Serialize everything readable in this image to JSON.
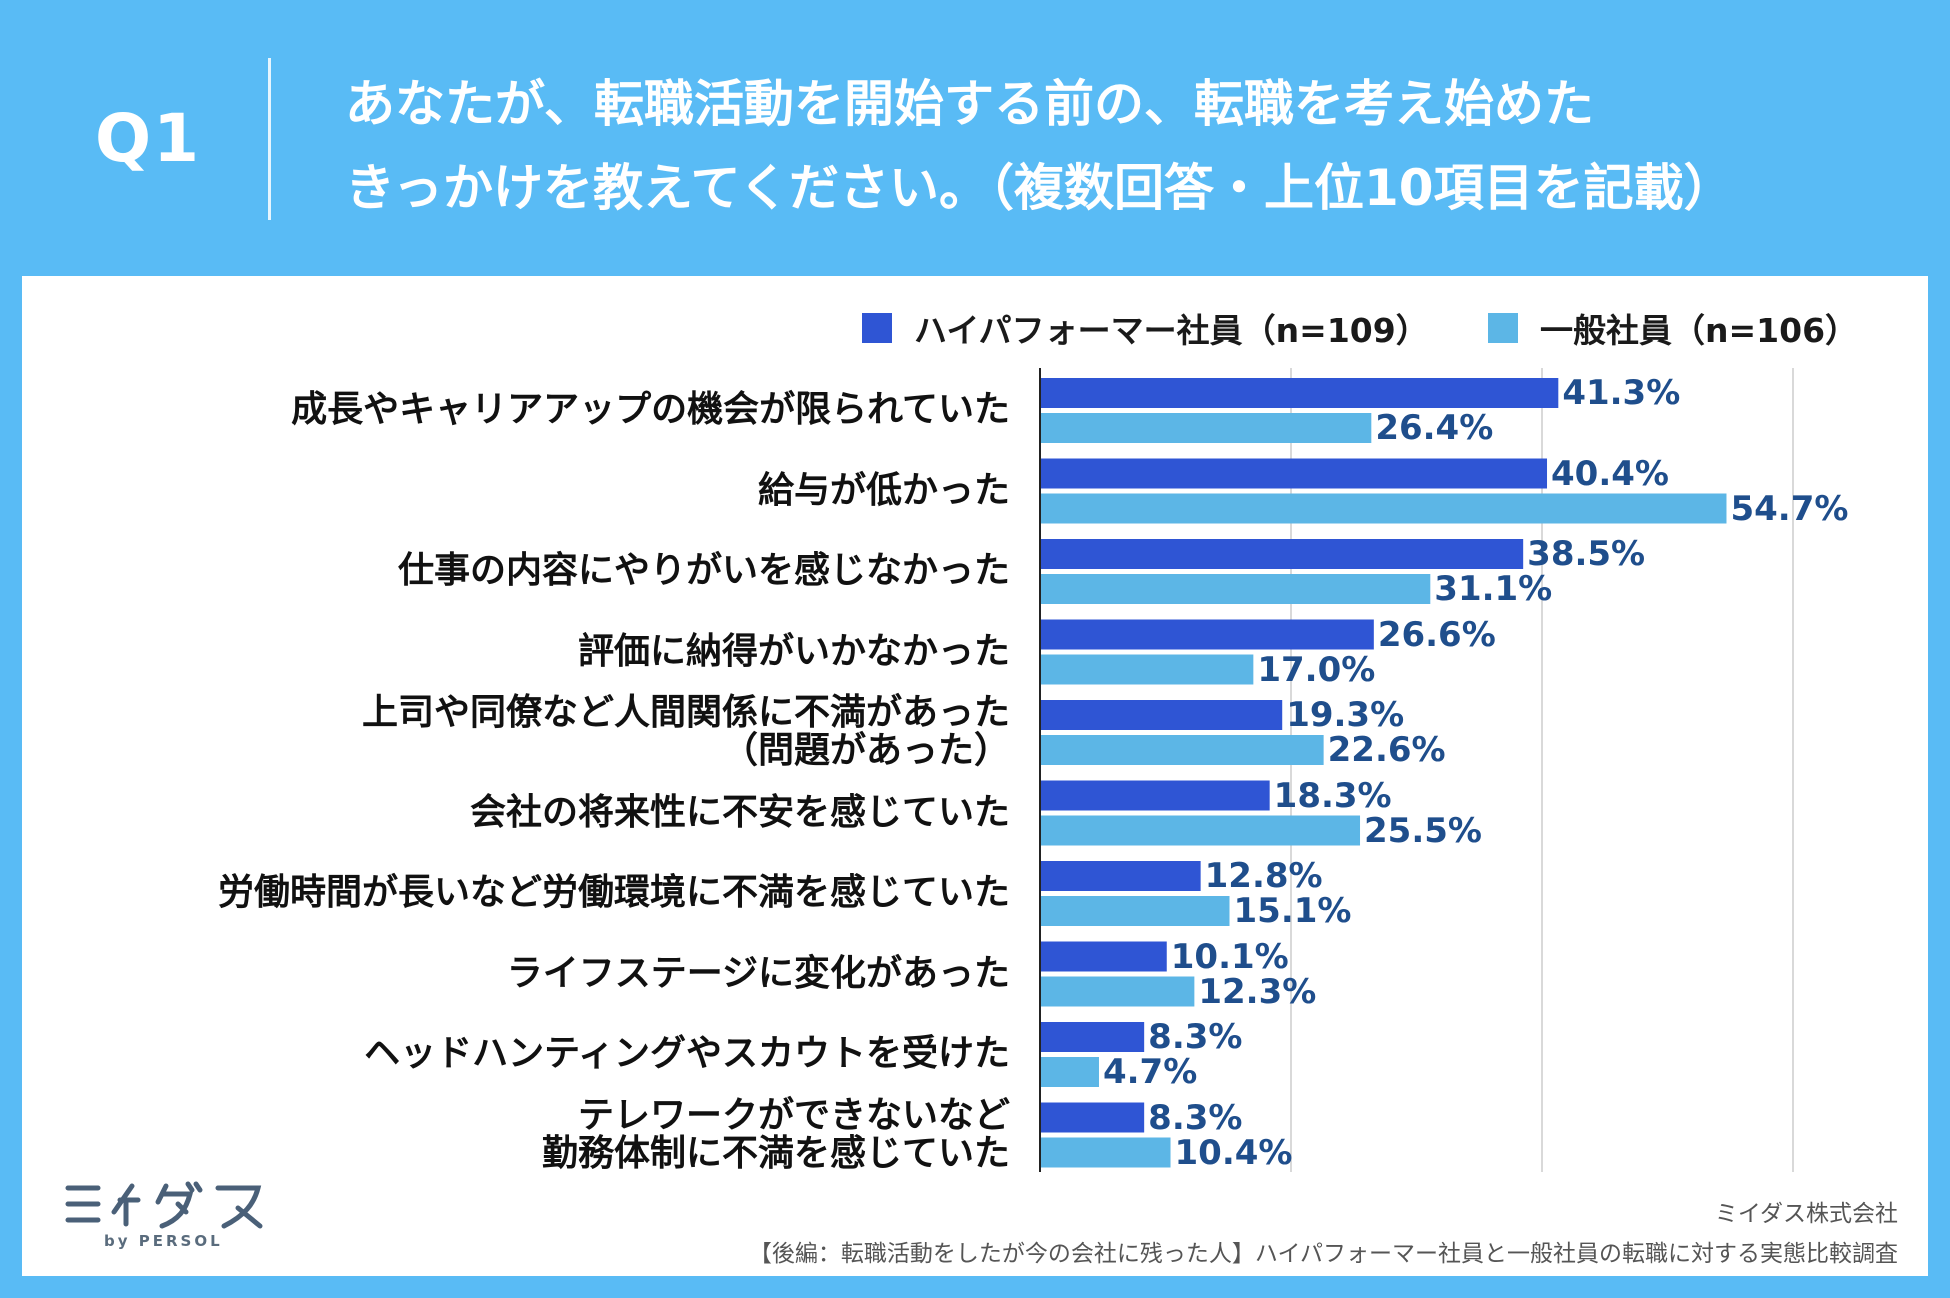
{
  "header": {
    "question_number": "Q1",
    "title_line1": "あなたが、転職活動を開始する前の、転職を考え始めた",
    "title_line2": "きっかけを教えてください。（複数回答・上位10項目を記載）"
  },
  "legend": {
    "high_performer": "ハイパフォーマー社員（n=109）",
    "general": "一般社員（n=106）"
  },
  "colors": {
    "background": "#59bbf5",
    "high_performer_bar": "#2f55d4",
    "general_bar": "#5cb6e6",
    "value_text": "#1f4e8c"
  },
  "chart_data": {
    "type": "bar",
    "orientation": "horizontal",
    "title": "あなたが、転職活動を開始する前の、転職を考え始めたきっかけを教えてください。（複数回答・上位10項目を記載）",
    "categories": [
      [
        "成長やキャリアアップの機会が限られていた"
      ],
      [
        "給与が低かった"
      ],
      [
        "仕事の内容にやりがいを感じなかった"
      ],
      [
        "評価に納得がいかなかった"
      ],
      [
        "上司や同僚など人間関係に不満があった",
        "（問題があった）"
      ],
      [
        "会社の将来性に不安を感じていた"
      ],
      [
        "労働時間が長いなど労働環境に不満を感じていた"
      ],
      [
        "ライフステージに変化があった"
      ],
      [
        "ヘッドハンティングやスカウトを受けた"
      ],
      [
        "テレワークができないなど",
        "勤務体制に不満を感じていた"
      ]
    ],
    "series": [
      {
        "name": "ハイパフォーマー社員（n=109）",
        "values": [
          41.3,
          40.4,
          38.5,
          26.6,
          19.3,
          18.3,
          12.8,
          10.1,
          8.3,
          8.3
        ],
        "labels": [
          "41.3%",
          "40.4%",
          "38.5%",
          "26.6%",
          "19.3%",
          "18.3%",
          "12.8%",
          "10.1%",
          "8.3%",
          "8.3%"
        ]
      },
      {
        "name": "一般社員（n=106）",
        "values": [
          26.4,
          54.7,
          31.1,
          17.0,
          22.6,
          25.5,
          15.1,
          12.3,
          4.7,
          10.4
        ],
        "labels": [
          "26.4%",
          "54.7%",
          "31.1%",
          "17.0%",
          "22.6%",
          "25.5%",
          "15.1%",
          "12.3%",
          "4.7%",
          "10.4%"
        ]
      }
    ],
    "xlim": [
      0,
      60
    ],
    "grid": true,
    "legend_position": "top-right"
  },
  "footer": {
    "logo_text": "ミイダス",
    "logo_by": "by PERSOL",
    "company": "ミイダス株式会社",
    "source": "【後編：転職活動をしたが今の会社に残った人】ハイパフォーマー社員と一般社員の転職に対する実態比較調査"
  }
}
